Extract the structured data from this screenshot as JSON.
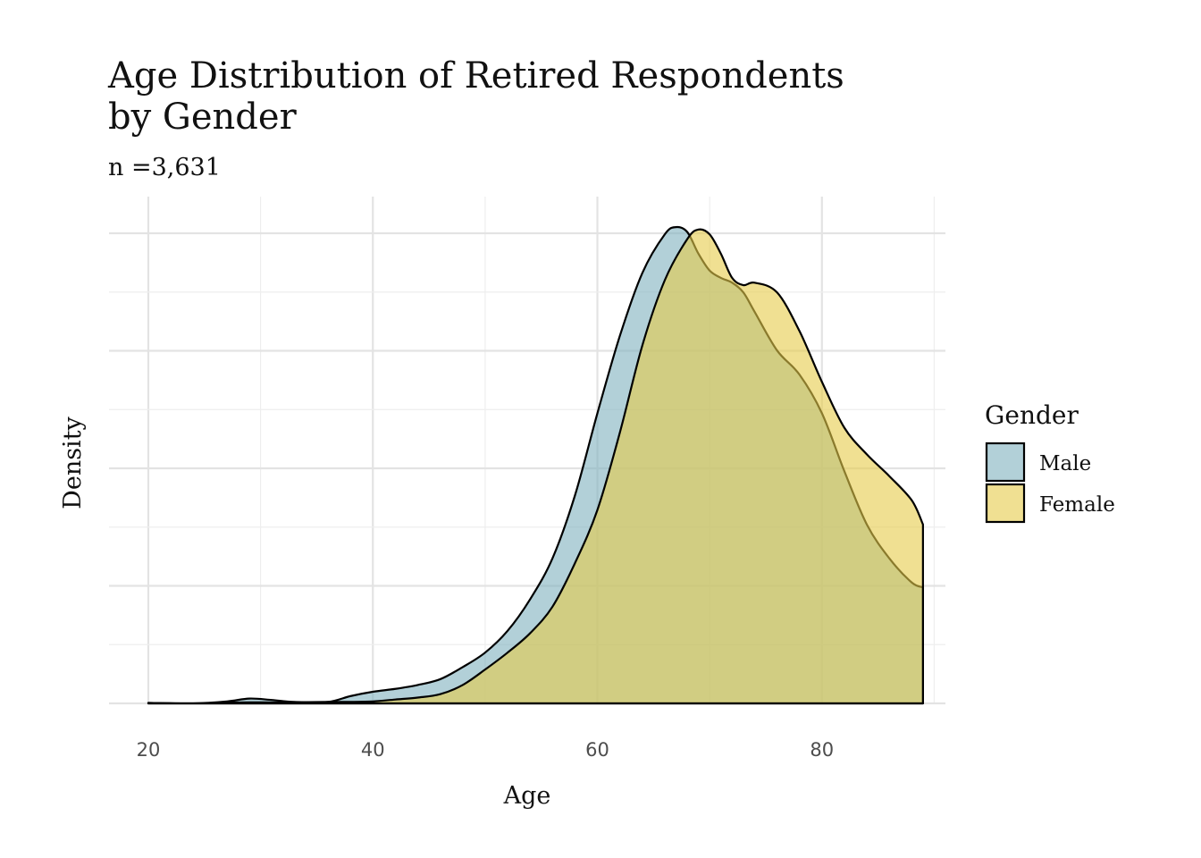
{
  "chart_data": {
    "type": "area",
    "title_lines": [
      "Age Distribution of Retired Respondents",
      "by Gender"
    ],
    "subtitle": "n =3,631",
    "xlabel": "Age",
    "ylabel": "Density",
    "xlim": [
      16.5,
      91
    ],
    "ylim": [
      0,
      1.0
    ],
    "x_ticks": [
      20,
      40,
      60,
      80
    ],
    "x_tick_labels": [
      "20",
      "40",
      "60",
      "80"
    ],
    "y_ticks_hidden": true,
    "grid": true,
    "legend": {
      "title": "Gender",
      "position": "right",
      "entries": [
        "Male",
        "Female"
      ]
    },
    "fill_opacity": 0.6,
    "colors": {
      "Male": "#7fb0be",
      "Female": "#e6cc4a"
    },
    "series": [
      {
        "name": "Male",
        "x": [
          20,
          24,
          27,
          29,
          31,
          33,
          36,
          38,
          40,
          42,
          44,
          46,
          48,
          50,
          52,
          54,
          56,
          58,
          60,
          62,
          64,
          66,
          67,
          68,
          69,
          70,
          71,
          72,
          73,
          74,
          76,
          78,
          80,
          82,
          84,
          86,
          88,
          89
        ],
        "y": [
          0.001,
          0.0,
          0.004,
          0.01,
          0.007,
          0.003,
          0.003,
          0.015,
          0.024,
          0.03,
          0.038,
          0.05,
          0.075,
          0.105,
          0.15,
          0.215,
          0.3,
          0.43,
          0.6,
          0.76,
          0.89,
          0.97,
          0.985,
          0.975,
          0.93,
          0.895,
          0.88,
          0.87,
          0.85,
          0.81,
          0.73,
          0.68,
          0.6,
          0.48,
          0.37,
          0.3,
          0.25,
          0.24
        ]
      },
      {
        "name": "Female",
        "x": [
          20,
          24,
          28,
          32,
          36,
          38,
          40,
          42,
          44,
          46,
          48,
          50,
          52,
          54,
          56,
          58,
          60,
          62,
          64,
          66,
          68,
          69,
          70,
          71,
          72,
          73,
          74,
          76,
          78,
          80,
          82,
          84,
          86,
          88,
          89
        ],
        "y": [
          0.001,
          0.0,
          0.002,
          0.002,
          0.003,
          0.003,
          0.004,
          0.008,
          0.012,
          0.019,
          0.038,
          0.07,
          0.105,
          0.145,
          0.2,
          0.29,
          0.4,
          0.56,
          0.74,
          0.875,
          0.96,
          0.98,
          0.97,
          0.93,
          0.88,
          0.865,
          0.87,
          0.85,
          0.77,
          0.665,
          0.57,
          0.515,
          0.47,
          0.42,
          0.37
        ]
      }
    ]
  }
}
